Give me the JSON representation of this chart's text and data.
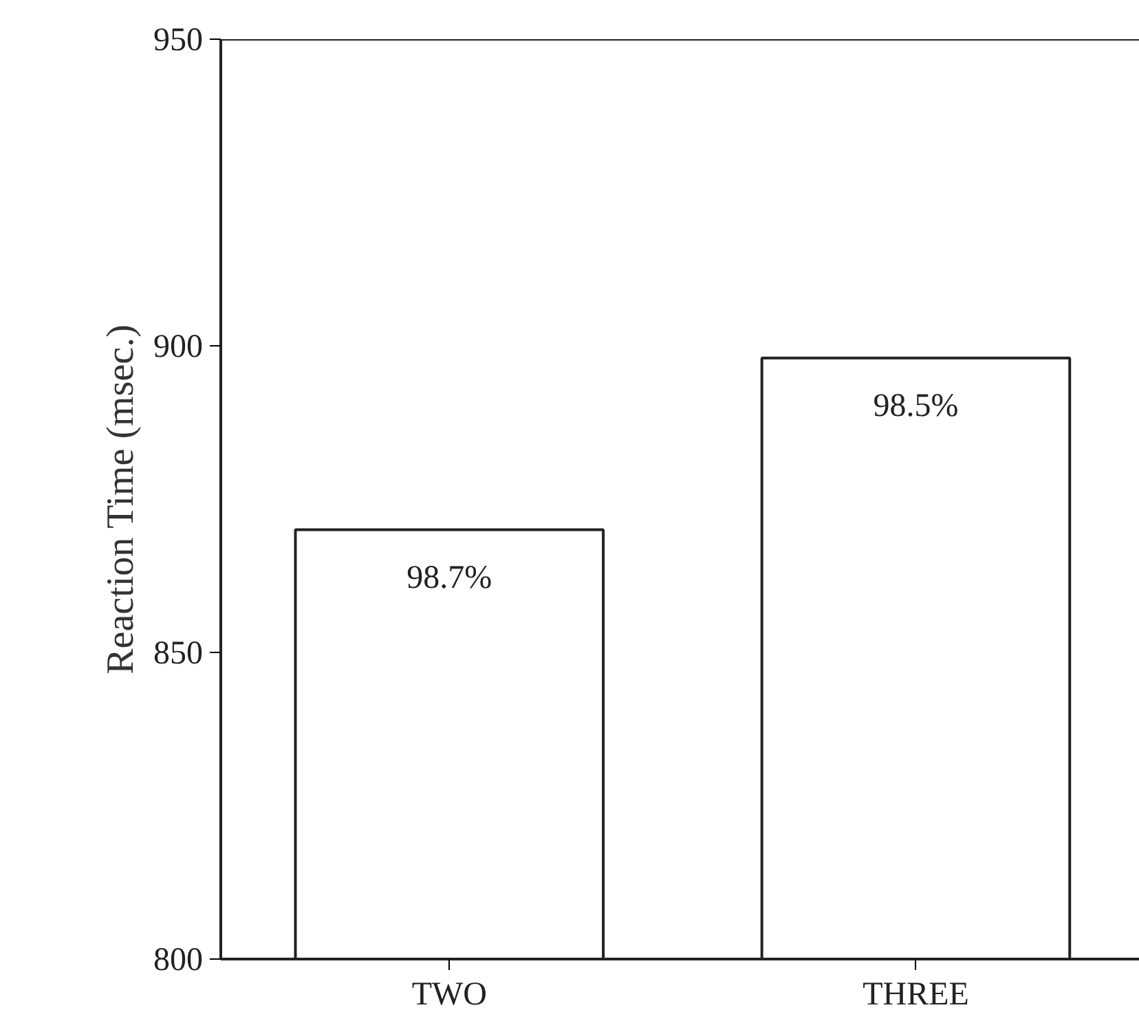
{
  "chart_data": {
    "type": "bar",
    "ylabel": "Reaction Time (msec.)",
    "categories": [
      "TWO",
      "THREE"
    ],
    "values": [
      870,
      898
    ],
    "color": "#ffffff",
    "ylim": [
      800,
      950
    ],
    "yticks": [
      800,
      850,
      900,
      950
    ],
    "grid": false,
    "annotations": [
      {
        "text": "98.7%",
        "x": "TWO",
        "y": 870
      },
      {
        "text": "98.5%",
        "x": "THREE",
        "y": 898
      }
    ]
  }
}
